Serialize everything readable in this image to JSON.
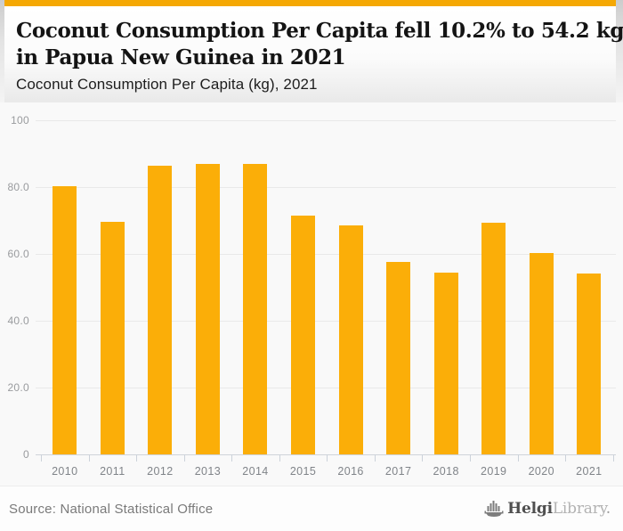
{
  "colors": {
    "accent_bar": "#F5A803",
    "bar_fill": "#FBAE08",
    "gridline": "#e9e9e9",
    "axis_line": "#cfd4da",
    "background": "#f9f9f9"
  },
  "header": {
    "title_lines": [
      "Coconut Consumption Per Capita fell 10.2% to 54.2 kg",
      "in Papua New Guinea in 2021"
    ],
    "subtitle": "Coconut Consumption Per Capita (kg), 2021"
  },
  "chart_data": {
    "type": "bar",
    "title": "Coconut Consumption Per Capita (kg), 2021",
    "categories": [
      "2010",
      "2011",
      "2012",
      "2013",
      "2014",
      "2015",
      "2016",
      "2017",
      "2018",
      "2019",
      "2020",
      "2021"
    ],
    "values": [
      80.3,
      69.7,
      86.4,
      86.9,
      86.9,
      71.6,
      68.6,
      57.7,
      54.5,
      69.4,
      60.4,
      54.2
    ],
    "xlabel": "",
    "ylabel": "",
    "ylim": [
      0,
      100
    ],
    "ytick_values": [
      100,
      80,
      60,
      40,
      20,
      0
    ],
    "ytick_labels": [
      "100",
      "80.0",
      "60.0",
      "40.0",
      "20.0",
      "0"
    ],
    "grid": true,
    "legend": "none"
  },
  "footer": {
    "source": "Source: National Statistical Office",
    "logo_part1": "Helgi",
    "logo_part2": "Library",
    "logo_suffix": "."
  }
}
